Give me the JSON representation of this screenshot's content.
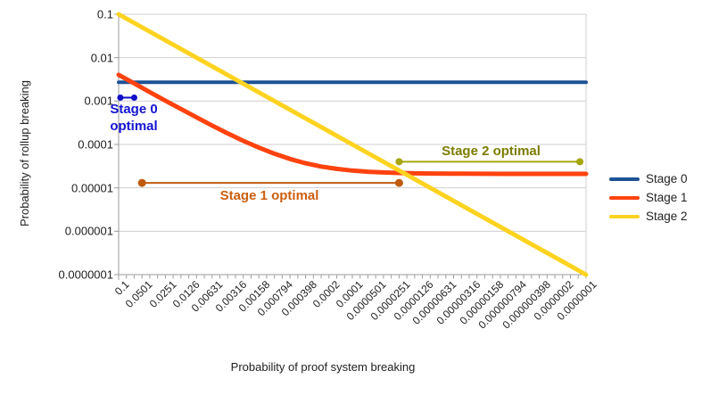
{
  "chart_data": {
    "type": "line",
    "title": "",
    "xlabel": "Probability of proof system breaking",
    "ylabel": "Probability of rollup breaking",
    "x_scale": "log",
    "y_scale": "log",
    "x_reversed": true,
    "x_range": [
      0.1,
      1e-07
    ],
    "y_range": [
      0.1,
      1e-07
    ],
    "grid": "horizontal",
    "legend_position": "right",
    "x_tick_labels": [
      "0.1",
      "0.0501",
      "0.0251",
      "0.0126",
      "0.00631",
      "0.00316",
      "0.00158",
      "0.000794",
      "0.000398",
      "0.0002",
      "0.0001",
      "0.0000501",
      "0.0000251",
      "0.0000126",
      "0.00000631",
      "0.00000316",
      "0.00000158",
      "0.000000794",
      "0.000000398",
      "0.0000002",
      "0.0000001"
    ],
    "y_tick_labels": [
      "0.1",
      "0.01",
      "0.001",
      "0.0001",
      "0.00001",
      "0.000001",
      "0.0000001"
    ],
    "series": [
      {
        "name": "Stage 0",
        "color": "#1d5296",
        "width": 4,
        "points": [
          [
            0.1,
            0.0027
          ],
          [
            1e-07,
            0.0027
          ]
        ]
      },
      {
        "name": "Stage 1",
        "color": "#ff420e",
        "width": 5,
        "points": [
          [
            0.1,
            0.00402
          ],
          [
            0.0631,
            0.00254
          ],
          [
            0.0398,
            0.00161
          ],
          [
            0.0251,
            0.00102
          ],
          [
            0.0158,
            0.000655
          ],
          [
            0.01,
            0.000421
          ],
          [
            0.00631,
            0.000273
          ],
          [
            0.00398,
            0.00018
          ],
          [
            0.00251,
            0.000121
          ],
          [
            0.00158,
            8.42e-05
          ],
          [
            0.001,
            6.1e-05
          ],
          [
            0.000631,
            4.62e-05
          ],
          [
            0.000398,
            3.69e-05
          ],
          [
            0.000251,
            3.1e-05
          ],
          [
            0.000158,
            2.73e-05
          ],
          [
            0.0001,
            2.5e-05
          ],
          [
            6.31e-05,
            2.35e-05
          ],
          [
            3.98e-05,
            2.26e-05
          ],
          [
            2.51e-05,
            2.2e-05
          ],
          [
            1.58e-05,
            2.16e-05
          ],
          [
            1e-05,
            2.14e-05
          ],
          [
            3.98e-06,
            2.12e-05
          ],
          [
            1e-06,
            2.1e-05
          ],
          [
            1e-07,
            2.1e-05
          ]
        ]
      },
      {
        "name": "Stage 2",
        "color": "#ffd320",
        "width": 5,
        "points": [
          [
            0.1,
            0.1
          ],
          [
            1e-07,
            1e-07
          ]
        ]
      }
    ],
    "annotations": [
      {
        "name": "stage-0-optimal",
        "text_line1": "Stage 0",
        "text_line2": "optimal",
        "text_color": "#1414d2",
        "line_color": "#0e0ec8",
        "x_start": 0.095,
        "x_end": 0.0631,
        "y": 0.0012,
        "dot_r": 3.5
      },
      {
        "name": "stage-1-optimal",
        "label": "Stage 1 optimal",
        "text_color": "#cc5f11",
        "line_color": "#bf5b0d",
        "x_start": 0.0501,
        "x_end": 2.51e-05,
        "y": 1.3e-05,
        "dot_r": 4.5
      },
      {
        "name": "stage-2-optimal",
        "label": "Stage 2 optimal",
        "text_color": "#7c7c00",
        "line_color": "#a6a60e",
        "x_start": 2.51e-05,
        "x_end": 1.2e-07,
        "y": 4e-05,
        "dot_r": 4
      }
    ]
  }
}
